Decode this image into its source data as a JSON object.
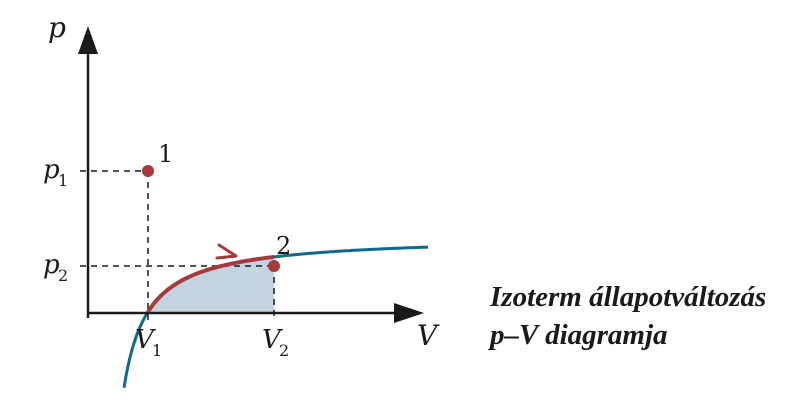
{
  "diagram": {
    "axes": {
      "y_label": "p",
      "x_label": "V"
    },
    "ticks": {
      "p1": {
        "base": "p",
        "sub": "1"
      },
      "p2": {
        "base": "p",
        "sub": "2"
      },
      "v1": {
        "base": "V",
        "sub": "1"
      },
      "v2": {
        "base": "V",
        "sub": "2"
      }
    },
    "points": [
      {
        "id": "state-1",
        "label": "1"
      },
      {
        "id": "state-2",
        "label": "2"
      }
    ],
    "colors": {
      "isotherm": "#0e6a8c",
      "process": "#a63a3a",
      "area_fill": "#c3d3e2",
      "axes": "#1a1a1a"
    }
  },
  "caption": {
    "line1": "Izoterm állapotváltozás",
    "line2": "p–V diagramja"
  }
}
